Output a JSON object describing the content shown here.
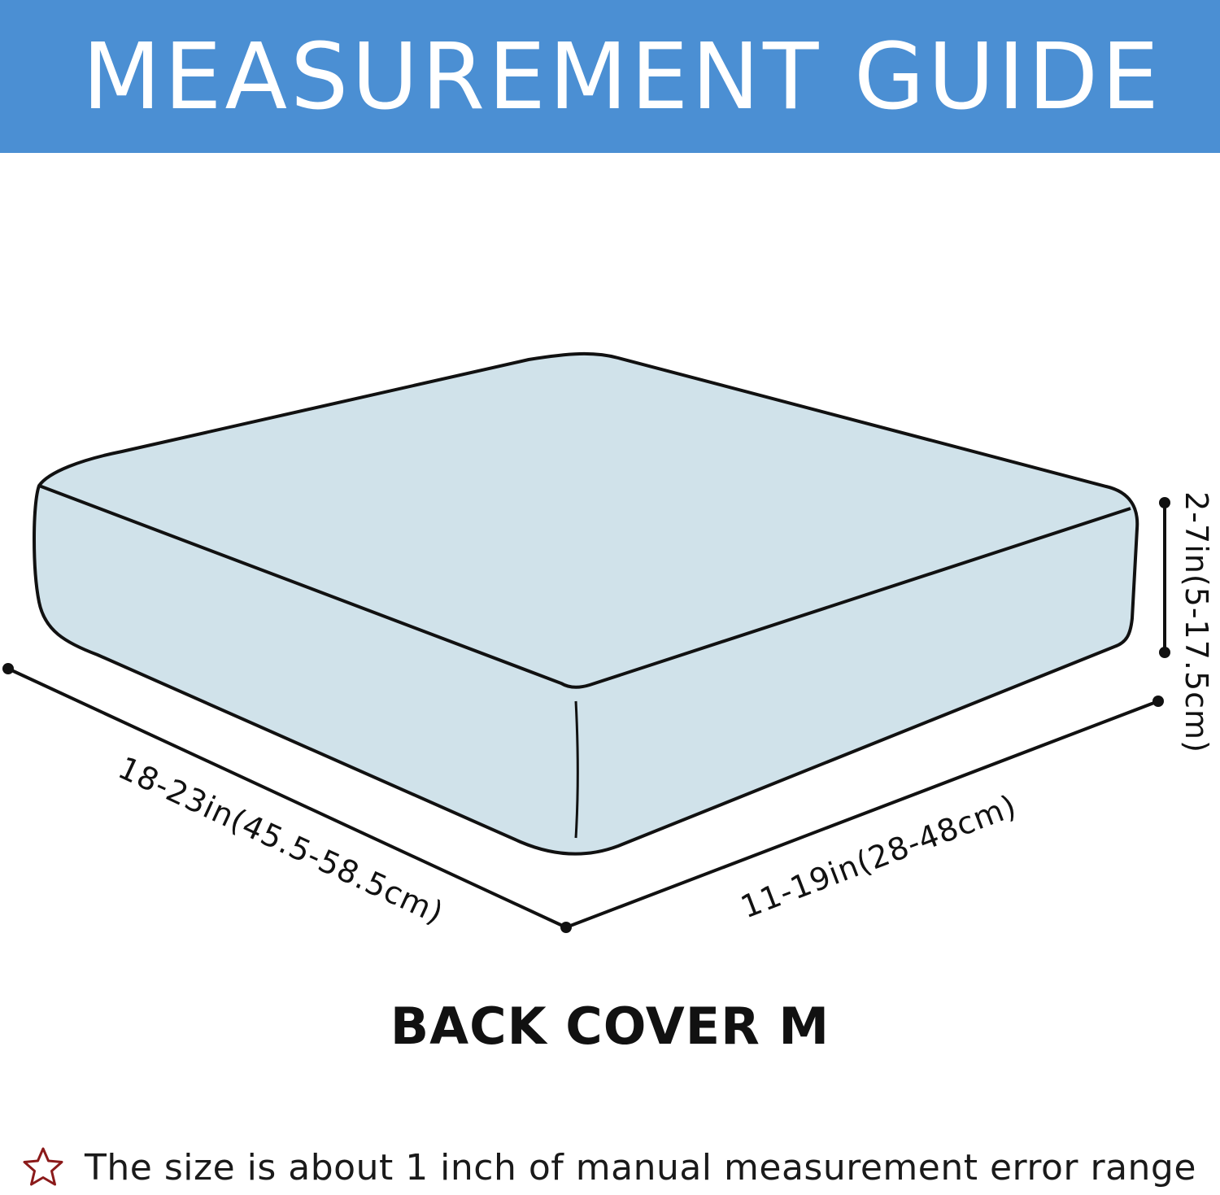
{
  "header": {
    "title": "MEASUREMENT GUIDE",
    "background_color": "#4b8fd3"
  },
  "diagram": {
    "cushion_fill": "#d0e2ea",
    "length_label": "18-23in(45.5-58.5cm)",
    "width_label": "11-19in(28-48cm)",
    "height_label": "2-7in(5-17.5cm)"
  },
  "caption": "BACK COVER M",
  "note": {
    "icon": "star-outline-icon",
    "icon_color": "#8b1a1a",
    "text": "The size is about 1 inch of manual measurement error range"
  }
}
